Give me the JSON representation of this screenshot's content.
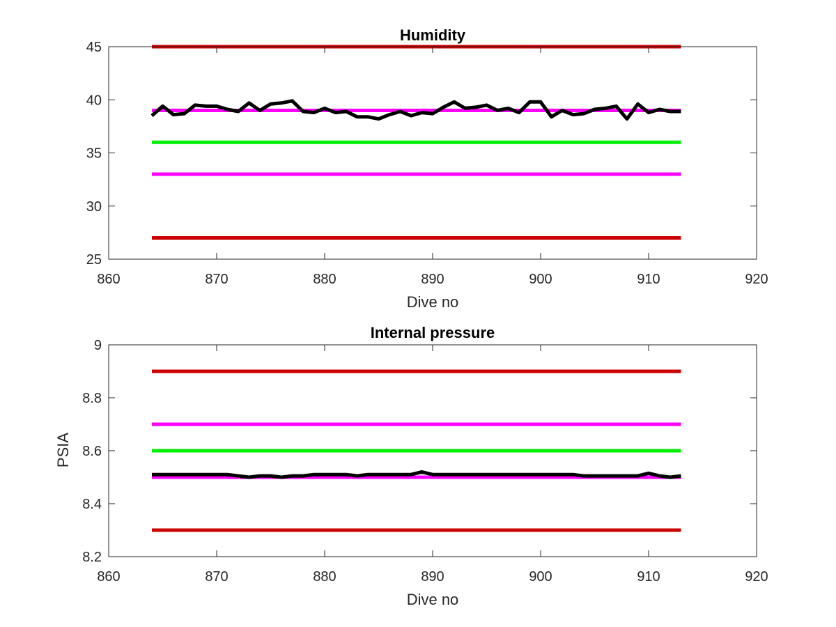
{
  "chart_data": [
    {
      "type": "line",
      "title": "Humidity",
      "xlabel": "Dive no",
      "ylabel": "",
      "xlim": [
        860,
        920
      ],
      "ylim": [
        25,
        45
      ],
      "xticks": [
        "860",
        "870",
        "880",
        "890",
        "900",
        "910",
        "920"
      ],
      "yticks": [
        "25",
        "30",
        "35",
        "40",
        "45"
      ],
      "grid": false,
      "reference_lines": [
        {
          "y": 45,
          "x_range": [
            864,
            913
          ],
          "color": "#cc0000"
        },
        {
          "y": 39,
          "x_range": [
            864,
            913
          ],
          "color": "#ff00ff"
        },
        {
          "y": 36,
          "x_range": [
            864,
            913
          ],
          "color": "#00ee00"
        },
        {
          "y": 33,
          "x_range": [
            864,
            913
          ],
          "color": "#ff00ff"
        },
        {
          "y": 27,
          "x_range": [
            864,
            913
          ],
          "color": "#cc0000"
        }
      ],
      "series": [
        {
          "color": "#000000",
          "x": [
            864,
            865,
            866,
            867,
            868,
            869,
            870,
            871,
            872,
            873,
            874,
            875,
            876,
            877,
            878,
            879,
            880,
            881,
            882,
            883,
            884,
            885,
            886,
            887,
            888,
            889,
            890,
            891,
            892,
            893,
            894,
            895,
            896,
            897,
            898,
            899,
            900,
            901,
            902,
            903,
            904,
            905,
            906,
            907,
            908,
            909,
            910,
            911,
            912,
            913
          ],
          "y": [
            38.5,
            39.4,
            38.6,
            38.7,
            39.5,
            39.4,
            39.4,
            39.1,
            38.9,
            39.7,
            39.0,
            39.6,
            39.7,
            39.9,
            38.9,
            38.8,
            39.2,
            38.8,
            38.9,
            38.4,
            38.4,
            38.2,
            38.6,
            38.9,
            38.5,
            38.8,
            38.7,
            39.3,
            39.8,
            39.2,
            39.3,
            39.5,
            39.0,
            39.2,
            38.8,
            39.8,
            39.8,
            38.4,
            39.0,
            38.6,
            38.7,
            39.1,
            39.2,
            39.4,
            38.2,
            39.6,
            38.8,
            39.1,
            38.9,
            38.9
          ]
        }
      ]
    },
    {
      "type": "line",
      "title": "Internal pressure",
      "xlabel": "Dive no",
      "ylabel": "PSIA",
      "xlim": [
        860,
        920
      ],
      "ylim": [
        8.2,
        9
      ],
      "xticks": [
        "860",
        "870",
        "880",
        "890",
        "900",
        "910",
        "920"
      ],
      "yticks": [
        "8.2",
        "8.4",
        "8.6",
        "8.8",
        "9"
      ],
      "grid": false,
      "reference_lines": [
        {
          "y": 8.9,
          "x_range": [
            864,
            913
          ],
          "color": "#cc0000"
        },
        {
          "y": 8.7,
          "x_range": [
            864,
            913
          ],
          "color": "#ff00ff"
        },
        {
          "y": 8.6,
          "x_range": [
            864,
            913
          ],
          "color": "#00ee00"
        },
        {
          "y": 8.5,
          "x_range": [
            864,
            913
          ],
          "color": "#ff00ff"
        },
        {
          "y": 8.3,
          "x_range": [
            864,
            913
          ],
          "color": "#cc0000"
        }
      ],
      "series": [
        {
          "color": "#000000",
          "x": [
            864,
            865,
            866,
            867,
            868,
            869,
            870,
            871,
            872,
            873,
            874,
            875,
            876,
            877,
            878,
            879,
            880,
            881,
            882,
            883,
            884,
            885,
            886,
            887,
            888,
            889,
            890,
            891,
            892,
            893,
            894,
            895,
            896,
            897,
            898,
            899,
            900,
            901,
            902,
            903,
            904,
            905,
            906,
            907,
            908,
            909,
            910,
            911,
            912,
            913
          ],
          "y": [
            8.51,
            8.51,
            8.51,
            8.51,
            8.51,
            8.51,
            8.51,
            8.51,
            8.505,
            8.5,
            8.505,
            8.505,
            8.5,
            8.505,
            8.505,
            8.51,
            8.51,
            8.51,
            8.51,
            8.505,
            8.51,
            8.51,
            8.51,
            8.51,
            8.51,
            8.52,
            8.51,
            8.51,
            8.51,
            8.51,
            8.51,
            8.51,
            8.51,
            8.51,
            8.51,
            8.51,
            8.51,
            8.51,
            8.51,
            8.51,
            8.505,
            8.505,
            8.505,
            8.505,
            8.505,
            8.505,
            8.515,
            8.505,
            8.5,
            8.505
          ]
        }
      ]
    }
  ]
}
